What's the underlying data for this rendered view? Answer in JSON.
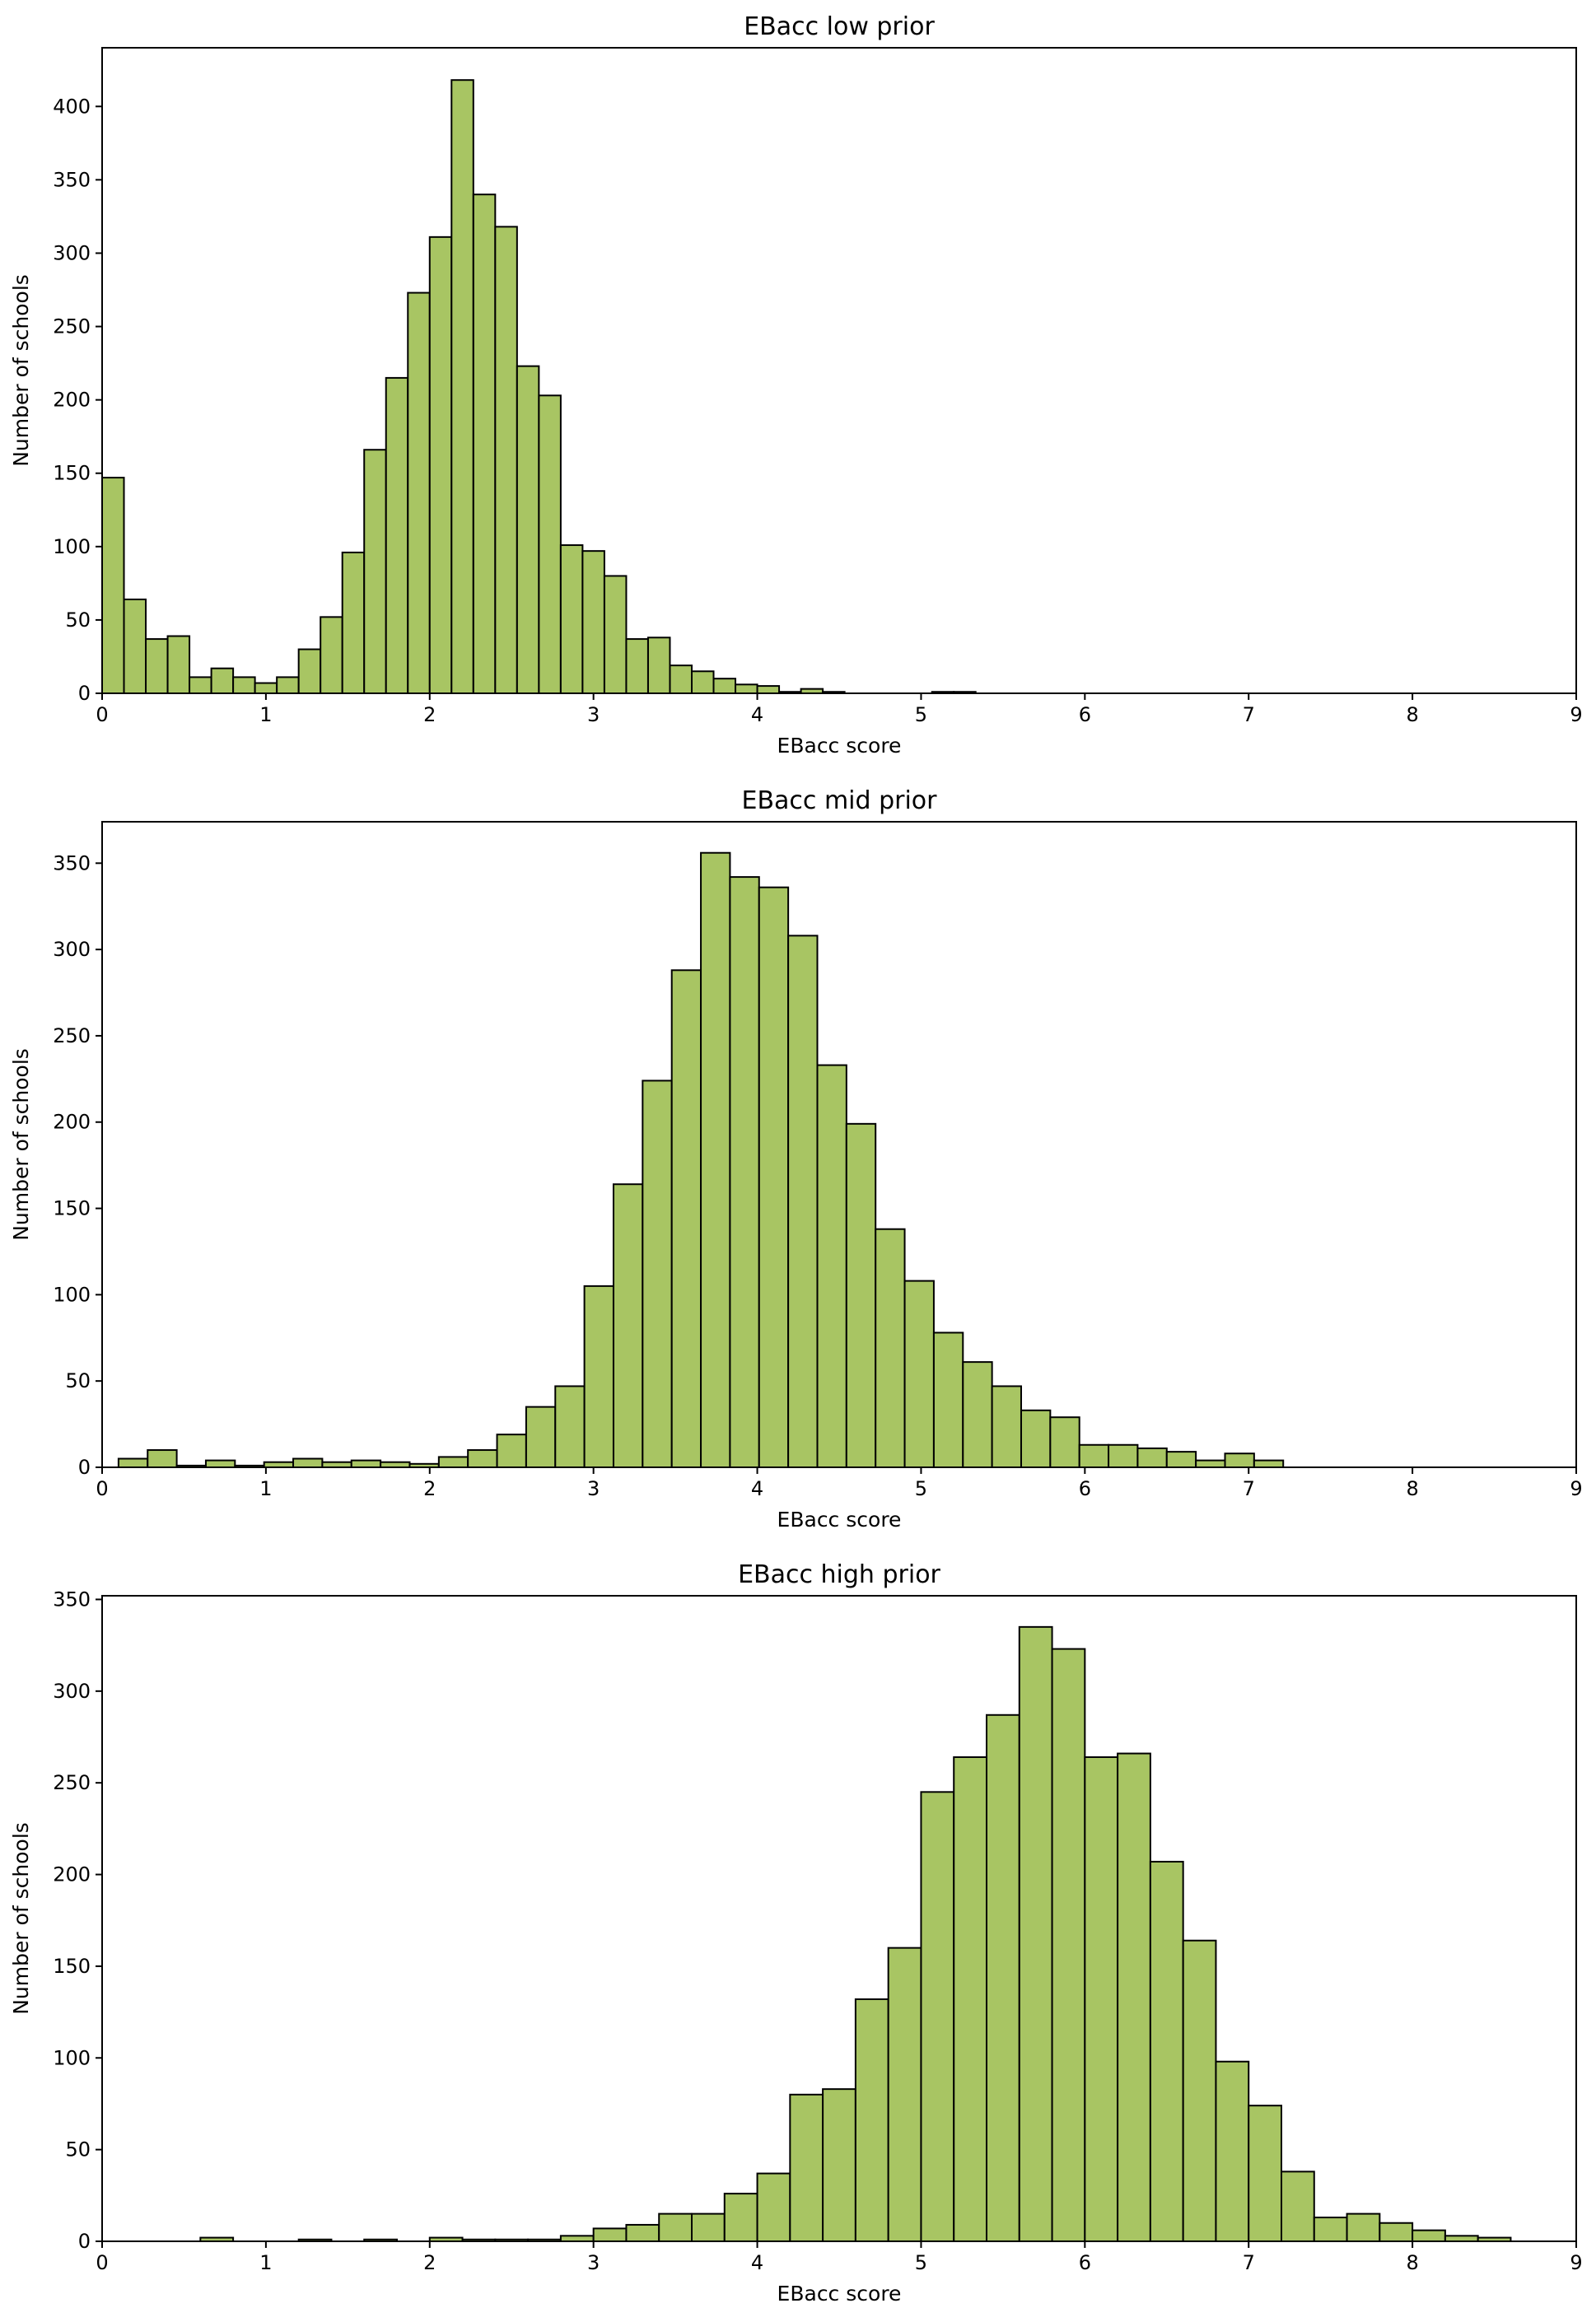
{
  "chart_data": [
    {
      "type": "bar",
      "title": "EBacc low prior",
      "xlabel": "EBacc score",
      "ylabel": "Number of schools",
      "xlim": [
        0,
        9
      ],
      "ylim": [
        0,
        440
      ],
      "xticks": [
        0,
        1,
        2,
        3,
        4,
        5,
        6,
        7,
        8,
        9
      ],
      "yticks": [
        0,
        50,
        100,
        150,
        200,
        250,
        300,
        350,
        400
      ],
      "grid": false,
      "bar_color": "#a8c563",
      "edge_color": "#000000",
      "bin_width": 0.1333,
      "bins_start": [
        0,
        0.1333,
        0.2667,
        0.4,
        0.5333,
        0.6667,
        0.8,
        0.9333,
        1.0667,
        1.2,
        1.3333,
        1.4667,
        1.6,
        1.7333,
        1.8667,
        2.0,
        2.1333,
        2.2667,
        2.4,
        2.5333,
        2.6667,
        2.8,
        2.9333,
        3.0667,
        3.2,
        3.3333,
        3.4667,
        3.6,
        3.7333,
        3.8667,
        4.0,
        4.1333,
        4.2667,
        4.4,
        4.5333,
        4.6667,
        4.8,
        4.9333,
        5.0667,
        5.2
      ],
      "values": [
        147,
        64,
        37,
        39,
        11,
        17,
        11,
        7,
        11,
        30,
        52,
        96,
        166,
        215,
        273,
        311,
        418,
        340,
        318,
        223,
        203,
        101,
        97,
        80,
        37,
        38,
        19,
        15,
        10,
        6,
        5,
        1,
        3,
        1,
        0,
        0,
        0,
        0,
        1,
        1
      ]
    },
    {
      "type": "bar",
      "title": "EBacc mid prior",
      "xlabel": "EBacc score",
      "ylabel": "Number of schools",
      "xlim": [
        0,
        9
      ],
      "ylim": [
        0,
        374
      ],
      "xticks": [
        0,
        1,
        2,
        3,
        4,
        5,
        6,
        7,
        8,
        9
      ],
      "yticks": [
        0,
        50,
        100,
        150,
        200,
        250,
        300,
        350
      ],
      "grid": false,
      "bar_color": "#a8c563",
      "edge_color": "#000000",
      "bin_width": 0.1778,
      "bins_start": [
        0.1,
        0.2778,
        0.4556,
        0.6333,
        0.8111,
        0.9889,
        1.1667,
        1.3444,
        1.5222,
        1.7,
        1.8778,
        2.0556,
        2.2333,
        2.4111,
        2.5889,
        2.7667,
        2.9444,
        3.1222,
        3.3,
        3.4778,
        3.6556,
        3.8333,
        4.0111,
        4.1889,
        4.3667,
        4.5444,
        4.7222,
        4.9,
        5.0778,
        5.2556,
        5.4333,
        5.6111,
        5.7889,
        5.9667,
        6.1444,
        6.3222,
        6.5,
        6.6778,
        6.8556,
        7.0333
      ],
      "values": [
        5,
        10,
        1,
        4,
        1,
        3,
        5,
        3,
        4,
        3,
        2,
        6,
        10,
        19,
        35,
        47,
        105,
        164,
        224,
        288,
        356,
        342,
        336,
        308,
        233,
        199,
        138,
        108,
        78,
        61,
        47,
        33,
        29,
        13,
        13,
        11,
        9,
        4,
        8,
        4
      ]
    },
    {
      "type": "bar",
      "title": "EBacc high prior",
      "xlabel": "EBacc score",
      "ylabel": "Number of schools",
      "xlim": [
        0,
        9
      ],
      "ylim": [
        0,
        352
      ],
      "xticks": [
        0,
        1,
        2,
        3,
        4,
        5,
        6,
        7,
        8,
        9
      ],
      "yticks": [
        0,
        50,
        100,
        150,
        200,
        250,
        300,
        350
      ],
      "grid": false,
      "bar_color": "#a8c563",
      "edge_color": "#000000",
      "bin_width": 0.2,
      "bins_start": [
        0.6,
        0.8,
        1.0,
        1.2,
        1.4,
        1.6,
        1.8,
        2.0,
        2.2,
        2.4,
        2.6,
        2.8,
        3.0,
        3.2,
        3.4,
        3.6,
        3.8,
        4.0,
        4.2,
        4.4,
        4.6,
        4.8,
        5.0,
        5.2,
        5.4,
        5.6,
        5.8,
        6.0,
        6.2,
        6.4,
        6.6,
        6.8,
        7.0,
        7.2,
        7.4,
        7.6,
        7.8,
        8.0,
        8.2,
        8.4
      ],
      "values": [
        2,
        0,
        0,
        1,
        0,
        1,
        0,
        2,
        1,
        1,
        1,
        3,
        7,
        9,
        15,
        15,
        26,
        37,
        80,
        83,
        132,
        160,
        245,
        264,
        287,
        335,
        323,
        264,
        266,
        207,
        164,
        98,
        74,
        38,
        13,
        15,
        10,
        6,
        3,
        2
      ]
    }
  ]
}
